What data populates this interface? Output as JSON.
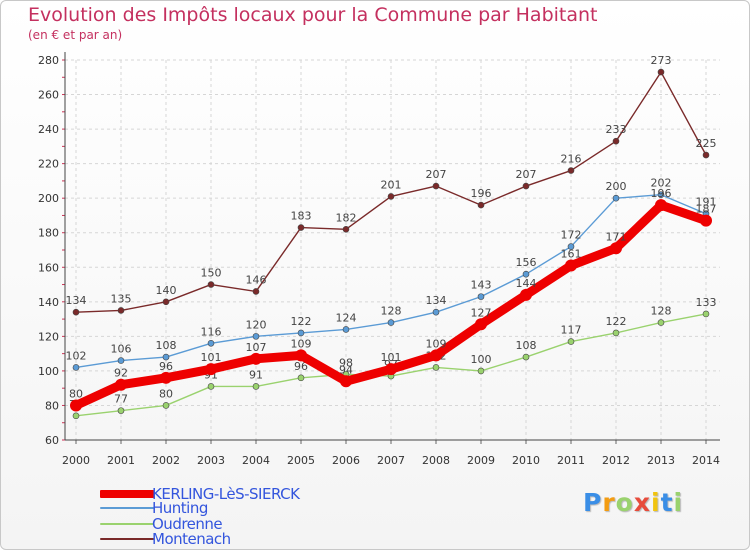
{
  "chart_data": {
    "type": "line",
    "title": "Evolution des Impôts locaux pour la Commune par Habitant",
    "subtitle": "(en € et par an)",
    "x": [
      "2000",
      "2001",
      "2002",
      "2003",
      "2004",
      "2005",
      "2006",
      "2007",
      "2008",
      "2009",
      "2010",
      "2011",
      "2012",
      "2013",
      "2014"
    ],
    "ylim": [
      60,
      280
    ],
    "yticks": [
      60,
      80,
      100,
      120,
      140,
      160,
      180,
      200,
      220,
      240,
      260,
      280
    ],
    "grid": true,
    "series": [
      {
        "name": "Montenach",
        "color": "#7a2a2a",
        "values": [
          134,
          135,
          140,
          150,
          146,
          183,
          182,
          201,
          207,
          196,
          207,
          216,
          233,
          273,
          225
        ]
      },
      {
        "name": "Hunting",
        "color": "#5b9bd5",
        "values": [
          102,
          106,
          108,
          116,
          120,
          122,
          124,
          128,
          134,
          143,
          156,
          172,
          200,
          202,
          191
        ]
      },
      {
        "name": "Oudrenne",
        "color": "#9ad26e",
        "values": [
          74,
          77,
          80,
          91,
          91,
          96,
          98,
          97,
          102,
          100,
          108,
          117,
          122,
          128,
          133
        ]
      },
      {
        "name": "KERLING-LèS-SIERCK",
        "color": "#ee0000",
        "values": [
          80,
          92,
          96,
          101,
          107,
          109,
          94,
          101,
          109,
          127,
          144,
          161,
          171,
          196,
          187
        ]
      }
    ]
  },
  "legend": {
    "items": [
      {
        "label": "KERLING-LèS-SIERCK",
        "color": "#ee0000"
      },
      {
        "label": "Hunting",
        "color": "#5b9bd5"
      },
      {
        "label": "Oudrenne",
        "color": "#9ad26e"
      },
      {
        "label": "Montenach",
        "color": "#7a2a2a"
      }
    ]
  },
  "logo": {
    "letters": [
      "P",
      "r",
      "o",
      "x",
      "i",
      "t",
      "i"
    ],
    "colors": [
      "#3a8ee6",
      "#f39c12",
      "#9ad26e",
      "#e74c3c",
      "#f1c40f",
      "#3a8ee6",
      "#9ad26e"
    ]
  }
}
